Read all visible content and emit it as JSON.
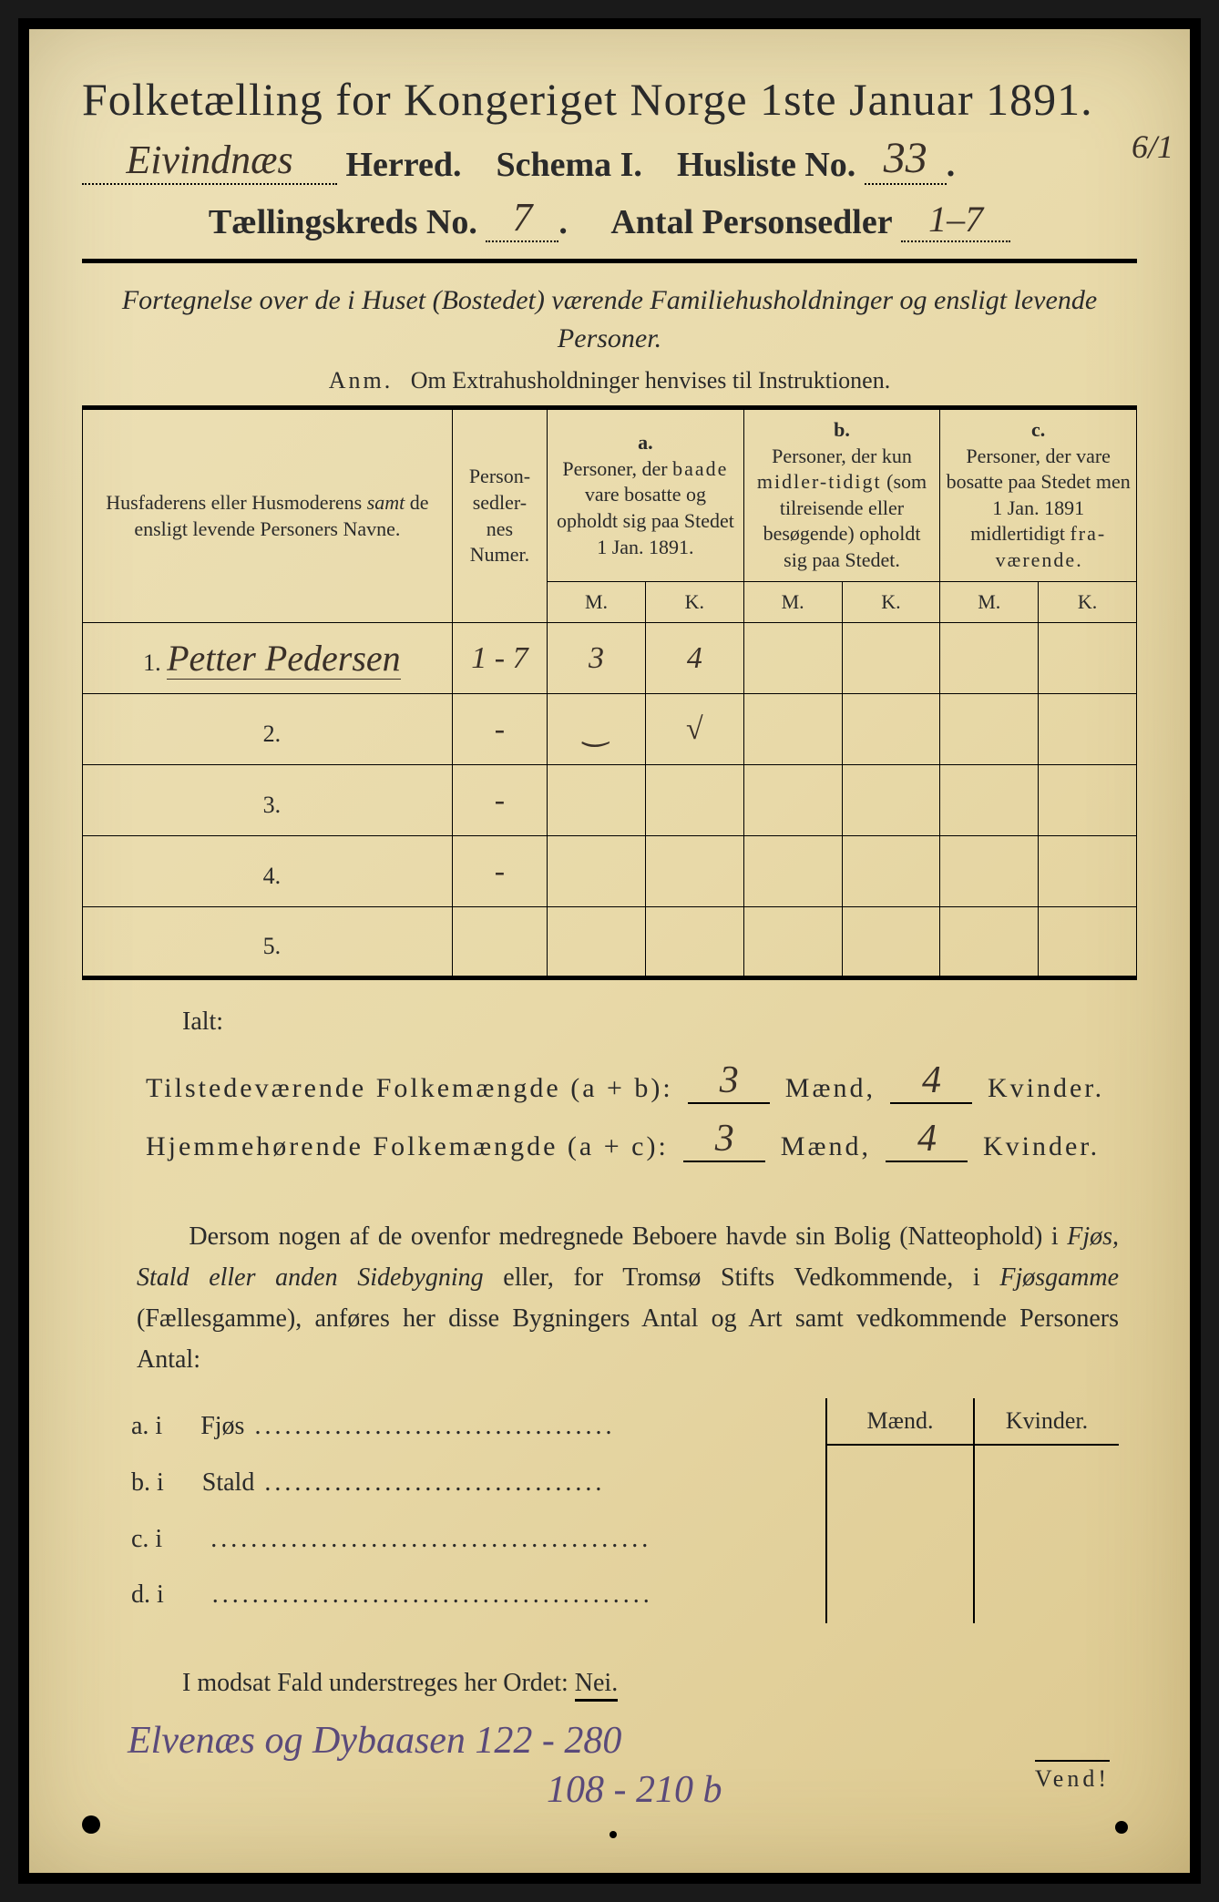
{
  "colors": {
    "paper_bg_top": "#ede1b8",
    "paper_bg_bottom": "#ddc990",
    "ink": "#2a2a2a",
    "handwriting": "#3a3028",
    "handwriting_purple": "#5a4a7a",
    "page_border": "#000000"
  },
  "typography": {
    "title_fontsize_pt": 38,
    "body_fontsize_pt": 22,
    "handwriting_family": "cursive"
  },
  "header": {
    "title": "Folketælling for Kongeriget Norge 1ste Januar 1891.",
    "herred_value": "Eivindnæs",
    "herred_label": "Herred.",
    "schema_label": "Schema I.",
    "husliste_label": "Husliste No.",
    "husliste_value": "33",
    "margin_note": "6/1",
    "kreds_label": "Tællingskreds No.",
    "kreds_value": "7",
    "antal_label": "Antal Personsedler",
    "antal_value": "1–7"
  },
  "subtitle": {
    "line": "Fortegnelse over de i Huset (Bostedet) værende Familiehusholdninger og ensligt levende Personer.",
    "anm_label": "Anm.",
    "anm_text": "Om Extrahusholdninger henvises til Instruktionen."
  },
  "table": {
    "col_headers": {
      "name": "Husfaderens eller Husmoderens samt de ensligt levende Personers Navne.",
      "numer": "Person-sedler-nes Numer.",
      "a_label": "a.",
      "a_text": "Personer, der baade vare bosatte og opholdt sig paa Stedet 1 Jan. 1891.",
      "b_label": "b.",
      "b_text": "Personer, der kun midlertidigt (som tilreisende eller besøgende) opholdt sig paa Stedet.",
      "c_label": "c.",
      "c_text": "Personer, der vare bosatte paa Stedet men 1 Jan. 1891 midlertidigt fraværende.",
      "m": "M.",
      "k": "K."
    },
    "rows": [
      {
        "num": "1.",
        "name": "Petter Pedersen",
        "numer": "1 - 7",
        "a_m": "3",
        "a_k": "4",
        "b_m": "",
        "b_k": "",
        "c_m": "",
        "c_k": ""
      },
      {
        "num": "2.",
        "name": "",
        "numer": "-",
        "a_m": "‿",
        "a_k": "√",
        "b_m": "",
        "b_k": "",
        "c_m": "",
        "c_k": ""
      },
      {
        "num": "3.",
        "name": "",
        "numer": "-",
        "a_m": "",
        "a_k": "",
        "b_m": "",
        "b_k": "",
        "c_m": "",
        "c_k": ""
      },
      {
        "num": "4.",
        "name": "",
        "numer": "-",
        "a_m": "",
        "a_k": "",
        "b_m": "",
        "b_k": "",
        "c_m": "",
        "c_k": ""
      },
      {
        "num": "5.",
        "name": "",
        "numer": "",
        "a_m": "",
        "a_k": "",
        "b_m": "",
        "b_k": "",
        "c_m": "",
        "c_k": ""
      }
    ]
  },
  "totals": {
    "ialt": "Ialt:",
    "tilstede_label": "Tilstedeværende Folkemængde (a + b):",
    "tilstede_m": "3",
    "tilstede_k": "4",
    "hjemme_label": "Hjemmehørende Folkemængde (a + c):",
    "hjemme_m": "3",
    "hjemme_k": "4",
    "maend": "Mænd,",
    "kvinder": "Kvinder."
  },
  "paragraph": {
    "text": "Dersom nogen af de ovenfor medregnede Beboere havde sin Bolig (Natteophold) i Fjøs, Stald eller anden Sidebygning eller, for Tromsø Stifts Vedkommende, i Fjøsgamme (Fællesgamme), anføres her disse Bygningers Antal og Art samt vedkommende Personers Antal:"
  },
  "subtable": {
    "headers": {
      "maend": "Mænd.",
      "kvinder": "Kvinder."
    },
    "rows": [
      {
        "label": "a.  i",
        "type": "Fjøs"
      },
      {
        "label": "b.  i",
        "type": "Stald"
      },
      {
        "label": "c.  i",
        "type": ""
      },
      {
        "label": "d.  i",
        "type": ""
      }
    ]
  },
  "modsat": {
    "text": "I modsat Fald understreges her Ordet:",
    "nei": "Nei."
  },
  "bottom": {
    "line1": "Elvenæs og Dybaasen 122 - 280",
    "line2": "108 - 210 b",
    "vend": "Vend!"
  }
}
